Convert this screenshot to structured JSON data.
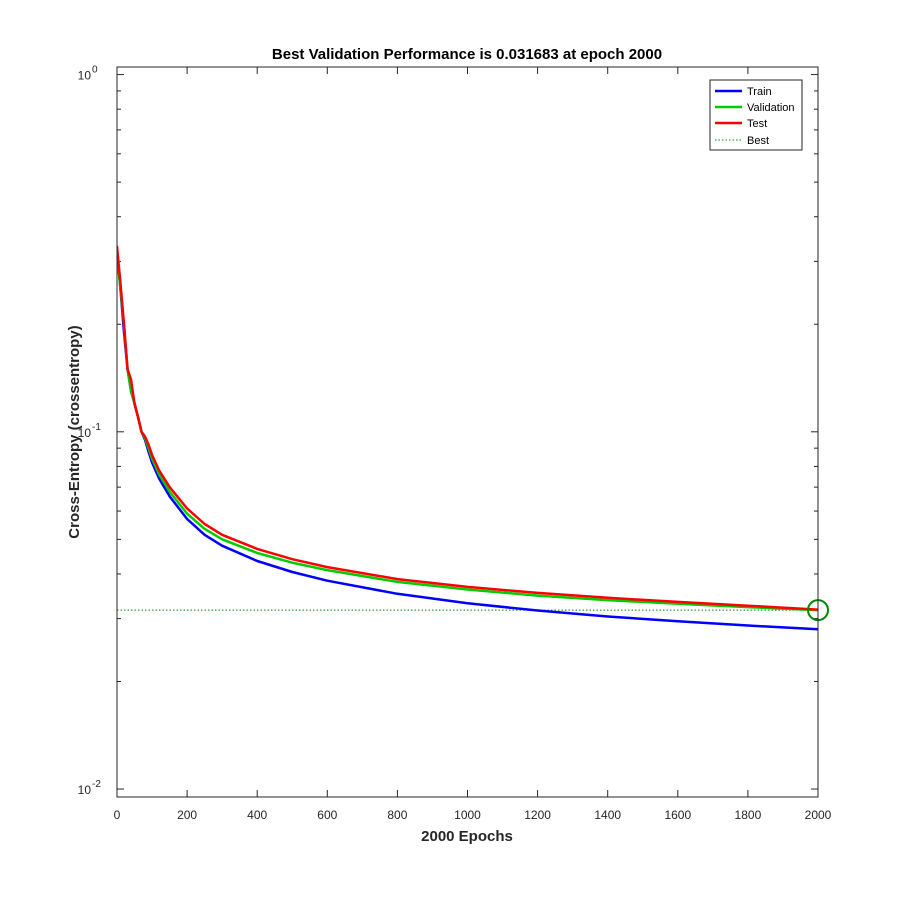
{
  "chart_data": {
    "type": "line",
    "title": "Best Validation Performance is 0.031683 at epoch 2000",
    "xlabel": "2000 Epochs",
    "ylabel": "Cross-Entropy  (crossentropy)",
    "xlim": [
      0,
      2000
    ],
    "ylim": [
      0.0095,
      1.05
    ],
    "yscale": "log",
    "grid": false,
    "legend_position": "top-right",
    "x_ticks": [
      0,
      200,
      400,
      600,
      800,
      1000,
      1200,
      1400,
      1600,
      1800,
      2000
    ],
    "x_tick_labels": [
      "0",
      "200",
      "400",
      "600",
      "800",
      "1000",
      "1200",
      "1400",
      "1600",
      "1800",
      "2000"
    ],
    "y_ticks": [
      0.01,
      0.1,
      1
    ],
    "y_tick_labels": [
      {
        "base": "10",
        "exp": "-2"
      },
      {
        "base": "10",
        "exp": "-1"
      },
      {
        "base": "10",
        "exp": "0"
      }
    ],
    "x": [
      0,
      10,
      20,
      30,
      40,
      50,
      60,
      70,
      80,
      90,
      100,
      120,
      150,
      200,
      250,
      300,
      400,
      500,
      600,
      800,
      1000,
      1200,
      1400,
      1600,
      1800,
      2000
    ],
    "series": [
      {
        "name": "Train",
        "color": "#0000ff",
        "values": [
          0.32,
          0.25,
          0.19,
          0.15,
          0.13,
          0.12,
          0.11,
          0.1,
          0.095,
          0.088,
          0.082,
          0.074,
          0.066,
          0.057,
          0.0515,
          0.048,
          0.0435,
          0.0405,
          0.0383,
          0.0352,
          0.0331,
          0.0316,
          0.0304,
          0.0295,
          0.0287,
          0.028
        ]
      },
      {
        "name": "Validation",
        "color": "#00cc00",
        "values": [
          0.32,
          0.25,
          0.2,
          0.15,
          0.13,
          0.12,
          0.11,
          0.1,
          0.096,
          0.09,
          0.084,
          0.076,
          0.068,
          0.059,
          0.0535,
          0.05,
          0.0458,
          0.043,
          0.041,
          0.038,
          0.0362,
          0.0348,
          0.0338,
          0.033,
          0.0323,
          0.03168
        ]
      },
      {
        "name": "Test",
        "color": "#ff0000",
        "values": [
          0.33,
          0.26,
          0.2,
          0.15,
          0.14,
          0.12,
          0.11,
          0.1,
          0.097,
          0.092,
          0.086,
          0.078,
          0.07,
          0.061,
          0.0552,
          0.0515,
          0.047,
          0.044,
          0.0418,
          0.0387,
          0.0368,
          0.0354,
          0.0343,
          0.0334,
          0.0326,
          0.0318
        ]
      }
    ],
    "best": {
      "label": "Best",
      "epoch": 2000,
      "value": 0.031683,
      "color": "#008800"
    }
  }
}
